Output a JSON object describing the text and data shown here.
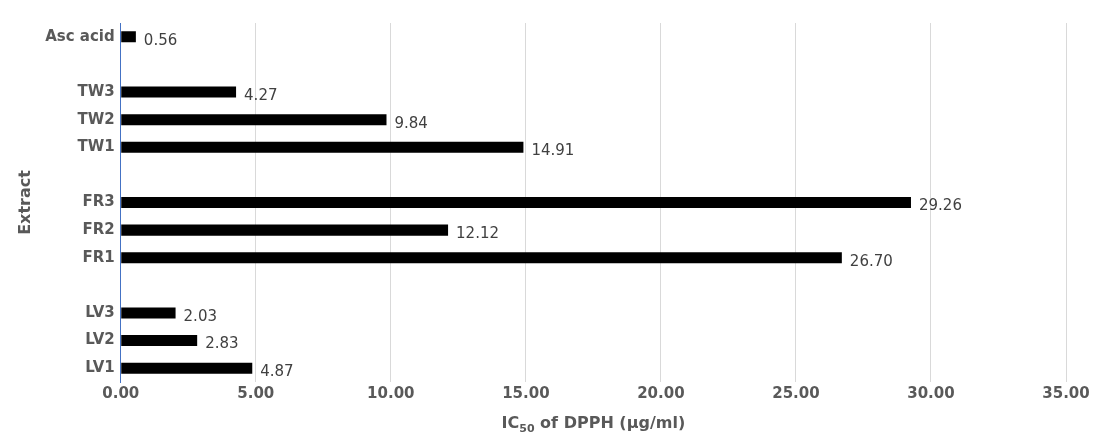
{
  "chart_data": {
    "type": "bar",
    "orientation": "horizontal",
    "categories": [
      "Asc acid",
      null,
      "TW3",
      "TW2",
      "TW1",
      null,
      "FR3",
      "FR2",
      "FR1",
      null,
      "LV3",
      "LV2",
      "LV1"
    ],
    "values": [
      0.56,
      null,
      4.27,
      9.84,
      14.91,
      null,
      29.26,
      12.12,
      26.7,
      null,
      2.03,
      2.83,
      4.87
    ],
    "value_labels": [
      "0.56",
      null,
      "4.27",
      "9.84",
      "14.91",
      null,
      "29.26",
      "12.12",
      "26.70",
      null,
      "2.03",
      "2.83",
      "4.87"
    ],
    "color": "#000000",
    "xlim": [
      0,
      35
    ],
    "xticks": [
      {
        "value": 0,
        "label": "0.00"
      },
      {
        "value": 5,
        "label": "5.00"
      },
      {
        "value": 10,
        "label": "10.00"
      },
      {
        "value": 15,
        "label": "15.00"
      },
      {
        "value": 20,
        "label": "20.00"
      },
      {
        "value": 25,
        "label": "25.00"
      },
      {
        "value": 30,
        "label": "30.00"
      },
      {
        "value": 35,
        "label": "35.00"
      }
    ],
    "xlabel": "IC$_{50}$ of DPPH (µg/ml)",
    "ylabel": "Extract",
    "grid": "x",
    "legend": false
  }
}
